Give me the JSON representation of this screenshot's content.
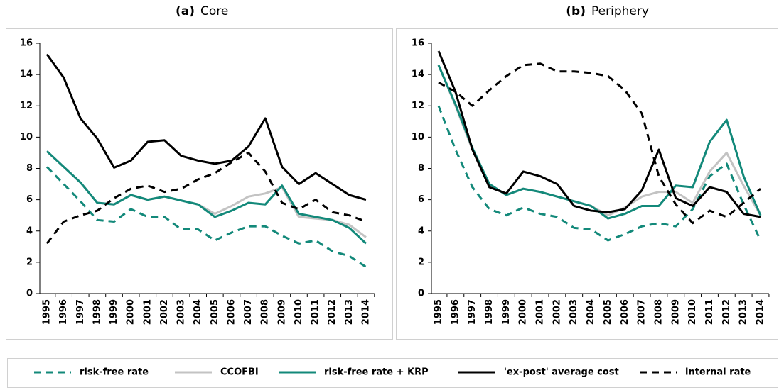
{
  "chart_data": [
    {
      "type": "line",
      "panel_label": "(a)",
      "title": "Core",
      "categories": [
        "1995",
        "1996",
        "1997",
        "1998",
        "1999",
        "2000",
        "2001",
        "2002",
        "2003",
        "2004",
        "2005",
        "2006",
        "2007",
        "2008",
        "2009",
        "2010",
        "2011",
        "2012",
        "2013",
        "2014"
      ],
      "ylim": [
        0,
        16
      ],
      "yticks": [
        0,
        2,
        4,
        6,
        8,
        10,
        12,
        14,
        16
      ],
      "series": [
        {
          "name": "risk-free rate",
          "color": "#13897a",
          "style": "dashed",
          "values": [
            8.1,
            7.0,
            5.9,
            4.7,
            4.6,
            5.4,
            4.9,
            4.9,
            4.1,
            4.1,
            3.4,
            3.9,
            4.3,
            4.3,
            3.7,
            3.2,
            3.4,
            2.7,
            2.4,
            1.7
          ]
        },
        {
          "name": "CCOFBI",
          "color": "#c3c3c3",
          "style": "solid",
          "values": [
            9.1,
            8.1,
            7.1,
            5.8,
            5.7,
            6.3,
            6.0,
            6.2,
            5.95,
            5.7,
            5.1,
            5.6,
            6.2,
            6.4,
            6.8,
            4.9,
            4.8,
            4.7,
            4.4,
            3.6
          ]
        },
        {
          "name": "risk-free rate + KRP",
          "color": "#13897a",
          "style": "solid",
          "values": [
            9.1,
            8.1,
            7.1,
            5.8,
            5.7,
            6.3,
            6.0,
            6.2,
            5.95,
            5.7,
            4.9,
            5.3,
            5.8,
            5.7,
            6.9,
            5.1,
            4.9,
            4.7,
            4.2,
            3.2
          ]
        },
        {
          "name": "'ex-post' average cost",
          "color": "#000000",
          "style": "solid",
          "values": [
            15.3,
            13.8,
            11.2,
            9.9,
            8.05,
            8.5,
            9.7,
            9.8,
            8.8,
            8.5,
            8.3,
            8.5,
            9.4,
            11.2,
            8.1,
            7.0,
            7.7,
            7.0,
            6.3,
            6.0
          ]
        },
        {
          "name": "internal rate",
          "color": "#000000",
          "style": "dashed",
          "values": [
            3.2,
            4.6,
            5.0,
            5.3,
            6.1,
            6.7,
            6.9,
            6.5,
            6.7,
            7.3,
            7.7,
            8.4,
            9.0,
            7.8,
            5.8,
            5.4,
            6.0,
            5.2,
            5.0,
            4.6
          ]
        }
      ]
    },
    {
      "type": "line",
      "panel_label": "(b)",
      "title": "Periphery",
      "categories": [
        "1995",
        "1996",
        "1997",
        "1998",
        "1999",
        "2000",
        "2001",
        "2002",
        "2003",
        "2004",
        "2005",
        "2006",
        "2007",
        "2008",
        "2009",
        "2010",
        "2011",
        "2012",
        "2013",
        "2014"
      ],
      "ylim": [
        0,
        16
      ],
      "yticks": [
        0,
        2,
        4,
        6,
        8,
        10,
        12,
        14,
        16
      ],
      "series": [
        {
          "name": "risk-free rate",
          "color": "#13897a",
          "style": "dashed",
          "values": [
            12.0,
            9.2,
            6.8,
            5.4,
            5.0,
            5.5,
            5.1,
            4.9,
            4.2,
            4.1,
            3.4,
            3.8,
            4.3,
            4.5,
            4.3,
            5.4,
            7.5,
            8.3,
            5.7,
            3.4
          ]
        },
        {
          "name": "CCOFBI",
          "color": "#c3c3c3",
          "style": "solid",
          "values": [
            14.6,
            12.0,
            9.2,
            7.0,
            6.3,
            6.7,
            6.5,
            6.2,
            5.9,
            5.6,
            5.0,
            5.5,
            6.2,
            6.5,
            6.5,
            5.8,
            7.8,
            9.0,
            6.9,
            5.0
          ]
        },
        {
          "name": "risk-free rate + KRP",
          "color": "#13897a",
          "style": "solid",
          "values": [
            14.6,
            12.1,
            9.3,
            7.0,
            6.3,
            6.7,
            6.5,
            6.2,
            5.9,
            5.6,
            4.8,
            5.1,
            5.6,
            5.6,
            6.9,
            6.8,
            9.7,
            11.1,
            7.5,
            5.0
          ]
        },
        {
          "name": "'ex-post' average cost",
          "color": "#000000",
          "style": "solid",
          "values": [
            15.5,
            12.9,
            9.2,
            6.8,
            6.4,
            7.8,
            7.5,
            7.0,
            5.6,
            5.3,
            5.2,
            5.4,
            6.6,
            9.2,
            6.1,
            5.6,
            6.8,
            6.5,
            5.1,
            4.9
          ]
        },
        {
          "name": "internal rate",
          "color": "#000000",
          "style": "dashed",
          "values": [
            13.5,
            12.9,
            12.0,
            13.0,
            13.9,
            14.6,
            14.7,
            14.2,
            14.2,
            14.1,
            13.9,
            13.0,
            11.5,
            7.5,
            5.7,
            4.5,
            5.3,
            4.9,
            5.8,
            6.7
          ]
        }
      ]
    }
  ]
}
